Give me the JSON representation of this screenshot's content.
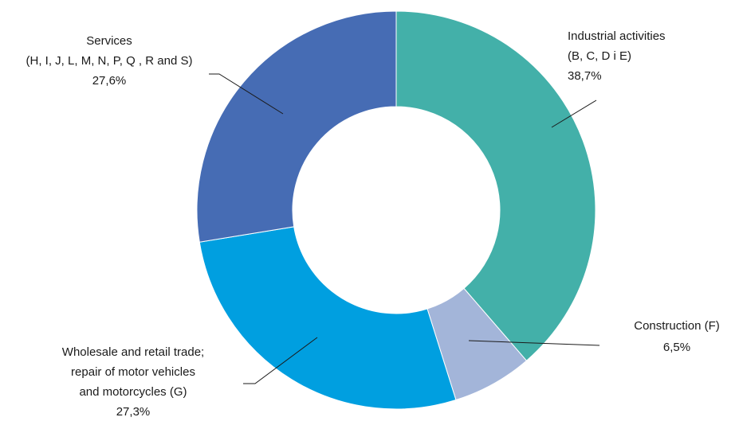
{
  "chart_data": {
    "type": "pie",
    "categories": [
      [
        "Industrial activities",
        "(B, C, D i E)"
      ],
      [
        "Construction (F)"
      ],
      [
        "Wholesale and retail trade;",
        "repair of motor vehicles",
        "and motorcycles (G)"
      ],
      [
        "Services",
        "(H, I, J, L, M, N, P, Q , R and S)"
      ]
    ],
    "values": [
      38.7,
      6.5,
      27.3,
      27.6
    ],
    "value_labels": [
      "38,7%",
      "6,5%",
      "27,3%",
      "27,6%"
    ],
    "colors": [
      "#43b0a9",
      "#a3b5d9",
      "#009fe0",
      "#466cb4"
    ]
  }
}
